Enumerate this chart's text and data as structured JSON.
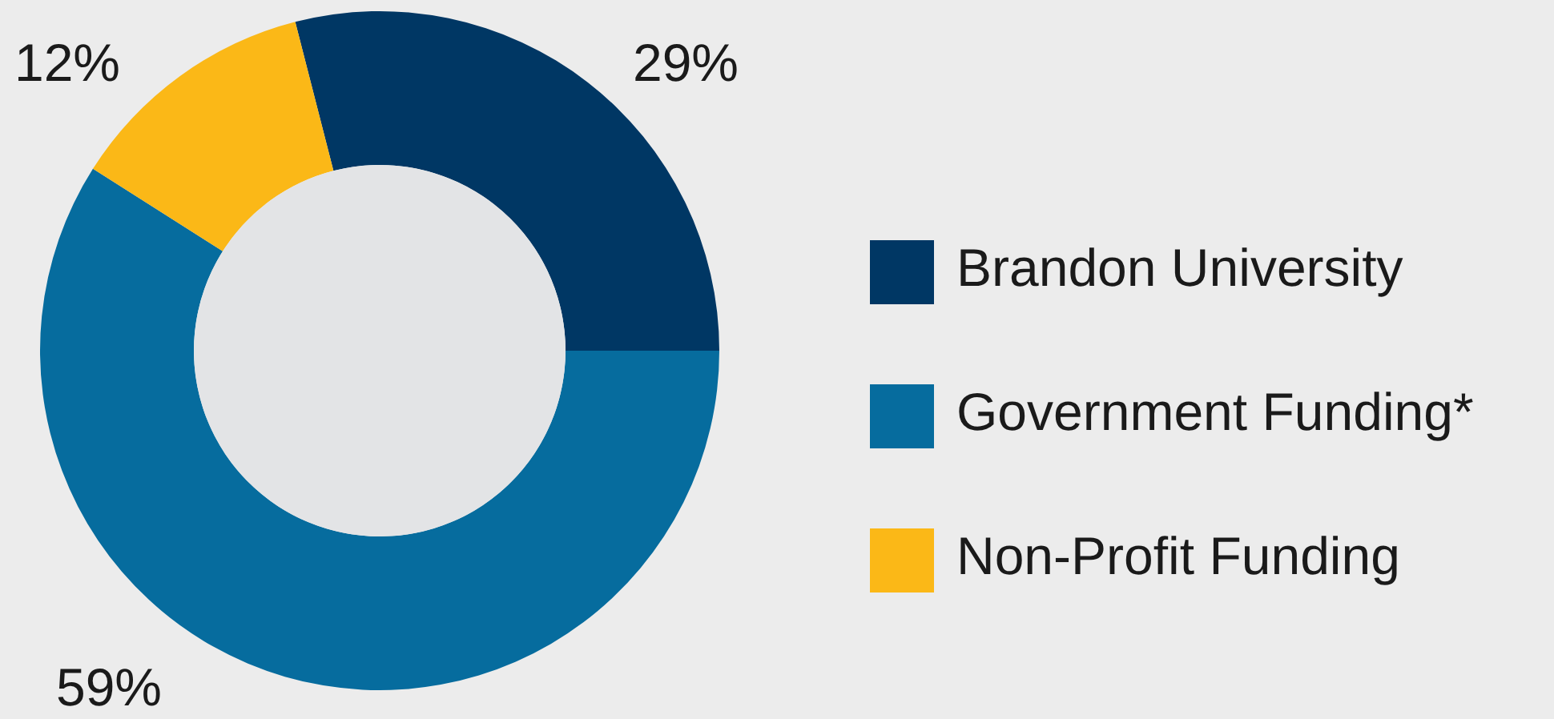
{
  "chart_data": {
    "type": "donut",
    "categories": [
      "Brandon University",
      "Government Funding*",
      "Non-Profit Funding"
    ],
    "values": [
      29,
      59,
      12
    ],
    "colors": [
      "#003764",
      "#066c9e",
      "#fbb817"
    ],
    "value_labels": [
      "29%",
      "59%",
      "12%"
    ],
    "legend": "right"
  }
}
